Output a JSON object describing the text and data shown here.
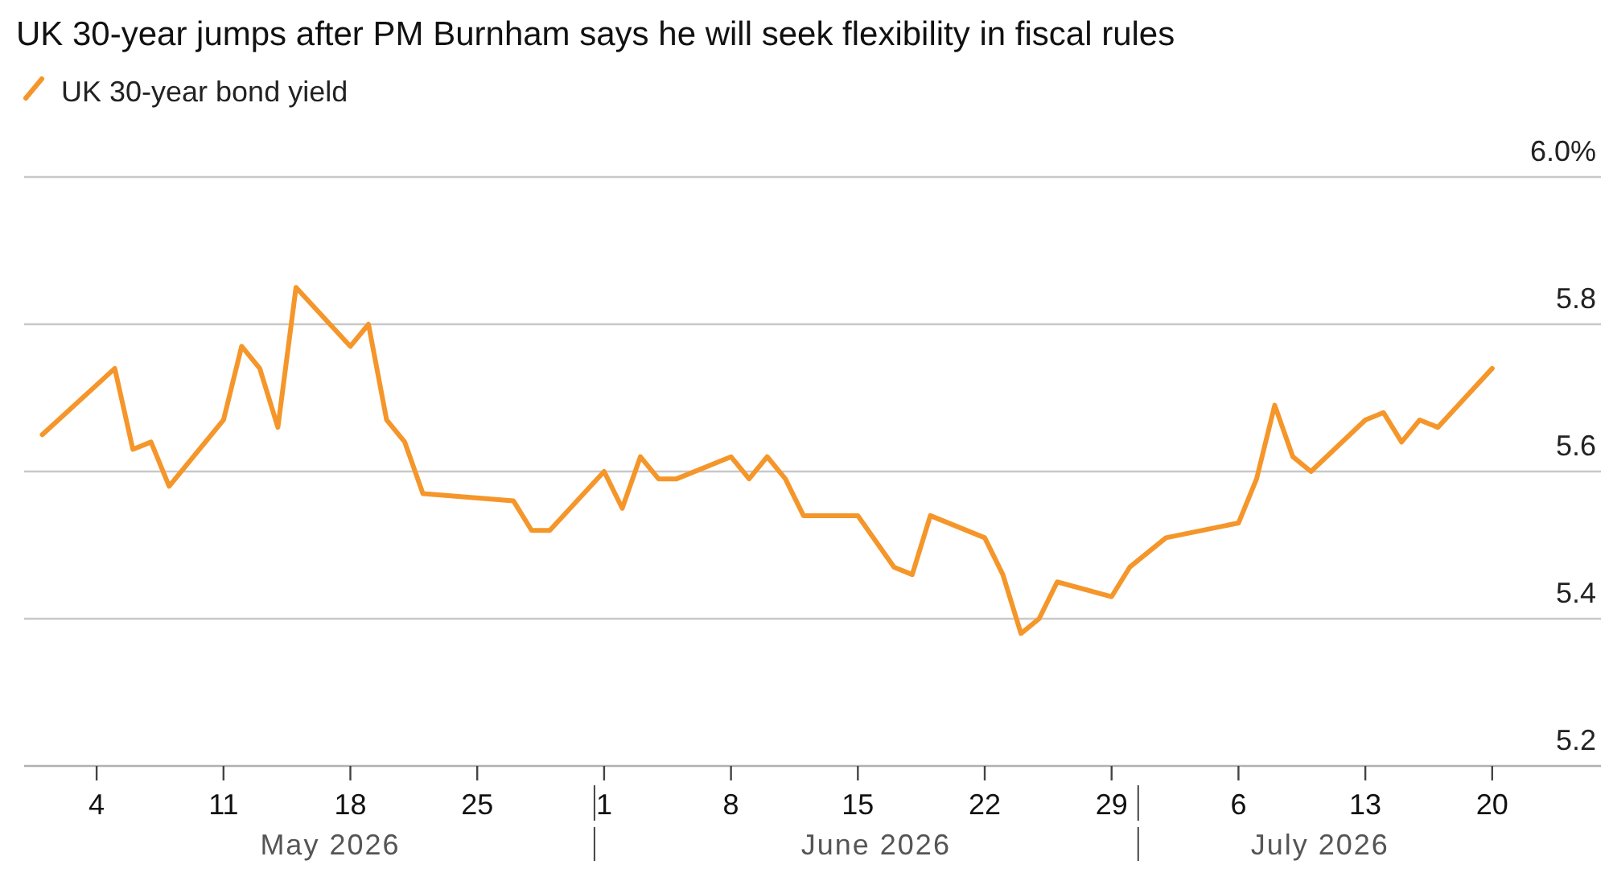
{
  "chart_data": {
    "type": "line",
    "title": "UK 30-year jumps after PM Burnham says he will seek flexibility in fiscal rules",
    "x": [
      "2026-05-01",
      "2026-05-05",
      "2026-05-06",
      "2026-05-07",
      "2026-05-08",
      "2026-05-11",
      "2026-05-12",
      "2026-05-13",
      "2026-05-14",
      "2026-05-15",
      "2026-05-18",
      "2026-05-19",
      "2026-05-20",
      "2026-05-21",
      "2026-05-22",
      "2026-05-27",
      "2026-05-28",
      "2026-05-29",
      "2026-06-01",
      "2026-06-02",
      "2026-06-03",
      "2026-06-04",
      "2026-06-05",
      "2026-06-08",
      "2026-06-09",
      "2026-06-10",
      "2026-06-11",
      "2026-06-12",
      "2026-06-15",
      "2026-06-17",
      "2026-06-18",
      "2026-06-19",
      "2026-06-22",
      "2026-06-23",
      "2026-06-24",
      "2026-06-25",
      "2026-06-26",
      "2026-06-29",
      "2026-06-30",
      "2026-07-01",
      "2026-07-02",
      "2026-07-06",
      "2026-07-07",
      "2026-07-08",
      "2026-07-09",
      "2026-07-10",
      "2026-07-13",
      "2026-07-14",
      "2026-07-15",
      "2026-07-16",
      "2026-07-17",
      "2026-07-20"
    ],
    "series": [
      {
        "name": "UK 30-year bond yield",
        "color": "#f5962a",
        "values": [
          5.65,
          5.74,
          5.63,
          5.64,
          5.58,
          5.67,
          5.77,
          5.74,
          5.66,
          5.85,
          5.77,
          5.8,
          5.67,
          5.64,
          5.57,
          5.56,
          5.52,
          5.52,
          5.6,
          5.55,
          5.62,
          5.59,
          5.59,
          5.62,
          5.59,
          5.62,
          5.59,
          5.54,
          5.54,
          5.47,
          5.46,
          5.54,
          5.51,
          5.46,
          5.38,
          5.4,
          5.45,
          5.43,
          5.47,
          5.49,
          5.51,
          5.53,
          5.59,
          5.69,
          5.62,
          5.6,
          5.67,
          5.68,
          5.64,
          5.67,
          5.66,
          5.74
        ]
      }
    ],
    "xlim": [
      "2026-04-30",
      "2026-07-26"
    ],
    "xticks": [
      {
        "value": "2026-05-04",
        "label": "4"
      },
      {
        "value": "2026-05-11",
        "label": "11"
      },
      {
        "value": "2026-05-18",
        "label": "18"
      },
      {
        "value": "2026-05-25",
        "label": "25"
      },
      {
        "value": "2026-06-01",
        "label": "1"
      },
      {
        "value": "2026-06-08",
        "label": "8"
      },
      {
        "value": "2026-06-15",
        "label": "15"
      },
      {
        "value": "2026-06-22",
        "label": "22"
      },
      {
        "value": "2026-06-29",
        "label": "29"
      },
      {
        "value": "2026-07-06",
        "label": "6"
      },
      {
        "value": "2026-07-13",
        "label": "13"
      },
      {
        "value": "2026-07-20",
        "label": "20"
      }
    ],
    "annotations": [
      "May 2026",
      "June 2026",
      "July 2026"
    ],
    "ylim": [
      5.2,
      6.0
    ],
    "yticks": [
      5.2,
      5.4,
      5.6,
      5.8,
      {
        "value": 6.0,
        "label": "6.0%"
      }
    ],
    "grid": "y",
    "legend": "top left",
    "marker": "none",
    "line_style": "solid"
  }
}
